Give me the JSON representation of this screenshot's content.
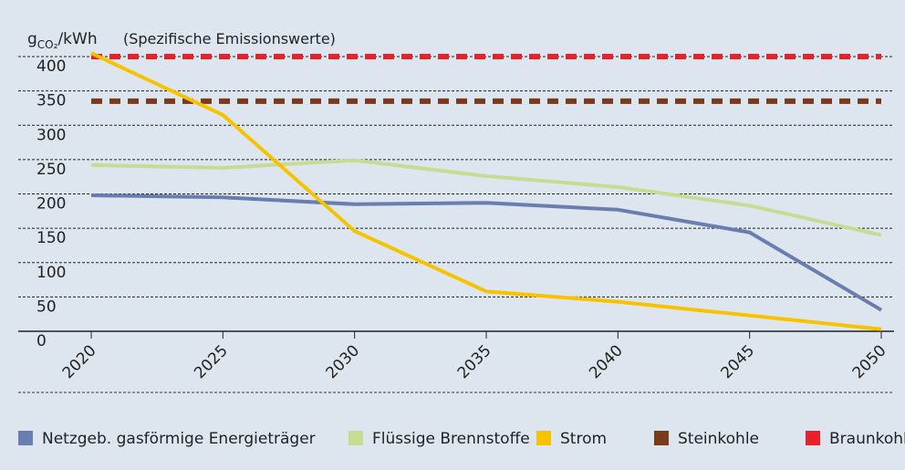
{
  "chart_data": {
    "type": "line",
    "y_unit": {
      "base": "g",
      "sub": "CO₂",
      "rest": "/kWh"
    },
    "subtitle": "(Spezifische Emissionswerte)",
    "x": [
      2020,
      2025,
      2030,
      2035,
      2040,
      2045,
      2050
    ],
    "xlim": [
      2020,
      2050
    ],
    "ylim": [
      0,
      400
    ],
    "yticks": [
      0,
      50,
      100,
      150,
      200,
      250,
      300,
      350,
      400
    ],
    "grid": true,
    "legend": "bottom",
    "series": [
      {
        "name": "Netzgeb. gasförmige Energieträger",
        "color": "#6a7db0",
        "values": [
          198,
          195,
          185,
          187,
          177,
          144,
          31
        ]
      },
      {
        "name": "Flüssige Brennstoffe",
        "color": "#c6dc92",
        "values": [
          242,
          238,
          249,
          226,
          210,
          183,
          140
        ]
      },
      {
        "name": "Strom",
        "color": "#f7c200",
        "values": [
          405,
          315,
          146,
          58,
          43,
          23,
          3
        ]
      },
      {
        "name": "Steinkohle",
        "color": "#7a3b1c",
        "dashed": true,
        "values": [
          335,
          335,
          335,
          335,
          335,
          335,
          335
        ]
      },
      {
        "name": "Braunkohle",
        "color": "#e8202a",
        "dashed": true,
        "values": [
          400,
          400,
          400,
          400,
          400,
          400,
          400
        ]
      }
    ]
  }
}
